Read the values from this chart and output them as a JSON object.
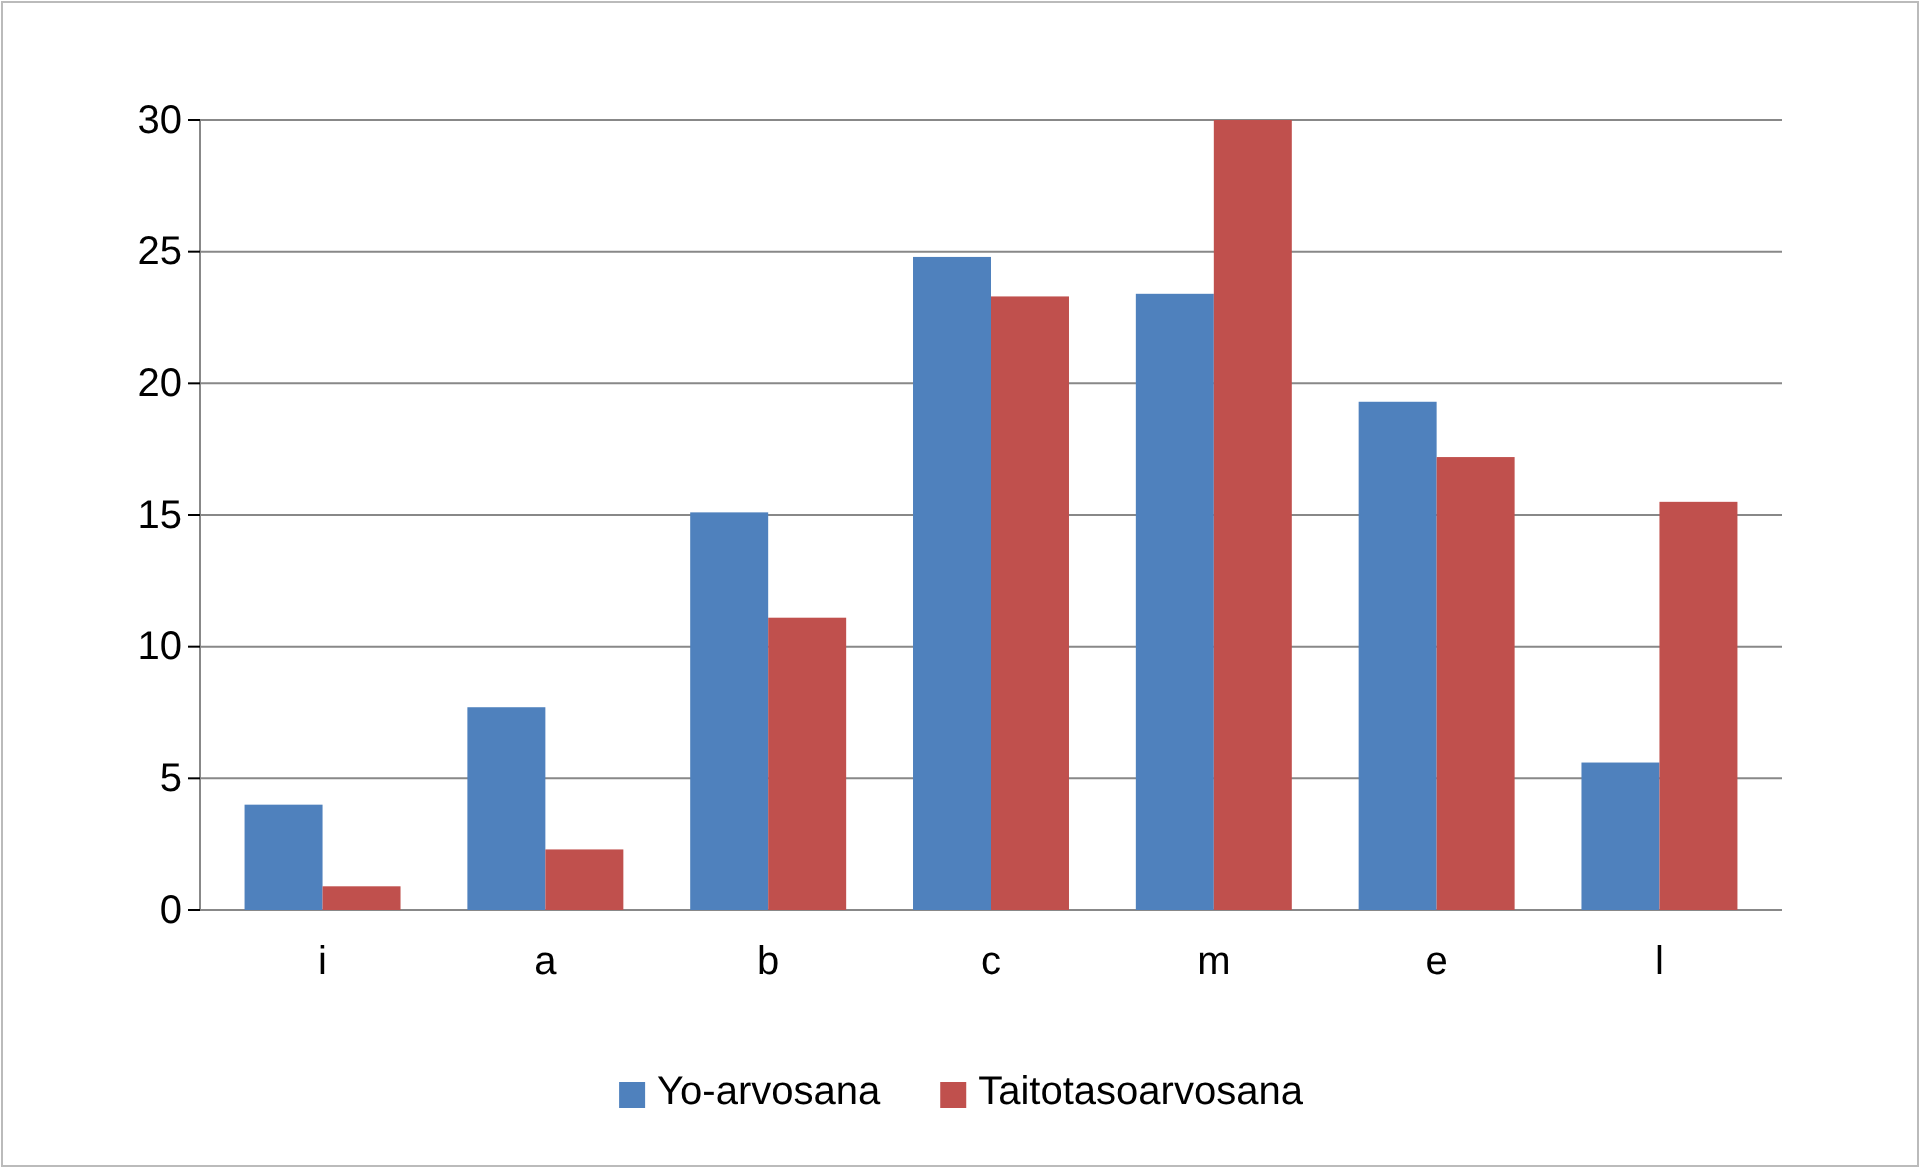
{
  "chart_data": {
    "type": "bar",
    "categories": [
      "i",
      "a",
      "b",
      "c",
      "m",
      "e",
      "l"
    ],
    "series": [
      {
        "name": "Yo-arvosana",
        "color": "#4f81bd",
        "values": [
          4,
          7.7,
          15.1,
          24.8,
          23.4,
          19.3,
          5.6
        ]
      },
      {
        "name": "Taitotasoarvosana",
        "color": "#c0504d",
        "values": [
          0.9,
          2.3,
          11.1,
          23.3,
          30,
          17.2,
          15.5
        ]
      }
    ],
    "ylim": [
      0,
      30
    ],
    "yticks": [
      0,
      5,
      10,
      15,
      20,
      25,
      30
    ],
    "grid": "y",
    "legend": "bottom"
  }
}
